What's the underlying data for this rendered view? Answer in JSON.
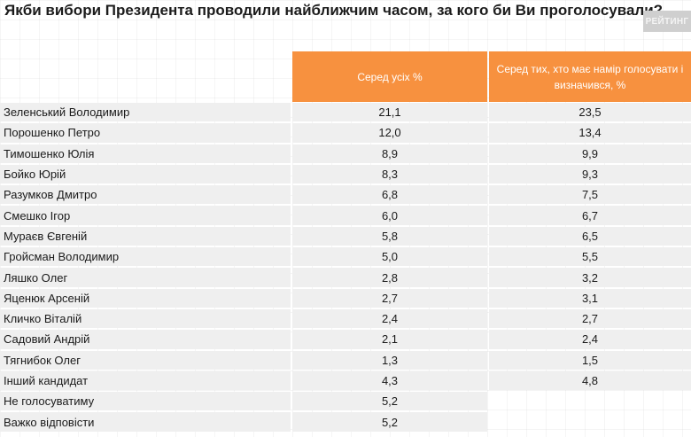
{
  "title": "Якби вибори Президента проводили найближчим часом, за кого би Ви проголосували?",
  "brand": "РЕЙТИНГ",
  "colors": {
    "header_bg": "#f7913f",
    "row_bg": "#efefef",
    "brand_bg": "#cfcfcf"
  },
  "table": {
    "headers": [
      "Серед усіх %",
      "Серед тих, хто має намір голосувати і визначився, %"
    ],
    "rows": [
      {
        "name": "Зеленський Володимир",
        "all": "21,1",
        "decided": "23,5"
      },
      {
        "name": "Порошенко Петро",
        "all": "12,0",
        "decided": "13,4"
      },
      {
        "name": "Тимошенко Юлія",
        "all": "8,9",
        "decided": "9,9"
      },
      {
        "name": "Бойко Юрій",
        "all": "8,3",
        "decided": "9,3"
      },
      {
        "name": "Разумков Дмитро",
        "all": "6,8",
        "decided": "7,5"
      },
      {
        "name": "Смешко Ігор",
        "all": "6,0",
        "decided": "6,7"
      },
      {
        "name": "Мураєв Євгеній",
        "all": "5,8",
        "decided": "6,5"
      },
      {
        "name": "Гройсман Володимир",
        "all": "5,0",
        "decided": "5,5"
      },
      {
        "name": "Ляшко Олег",
        "all": "2,8",
        "decided": "3,2"
      },
      {
        "name": "Яценюк Арсеній",
        "all": "2,7",
        "decided": "3,1"
      },
      {
        "name": "Кличко Віталій",
        "all": "2,4",
        "decided": "2,7"
      },
      {
        "name": "Садовий Андрій",
        "all": "2,1",
        "decided": "2,4"
      },
      {
        "name": "Тягнибок Олег",
        "all": "1,3",
        "decided": "1,5"
      },
      {
        "name": "Інший кандидат",
        "all": "4,3",
        "decided": "4,8"
      },
      {
        "name": "Не голосуватиму",
        "all": "5,2",
        "decided": null
      },
      {
        "name": "Важко відповісти",
        "all": "5,2",
        "decided": null
      }
    ]
  }
}
